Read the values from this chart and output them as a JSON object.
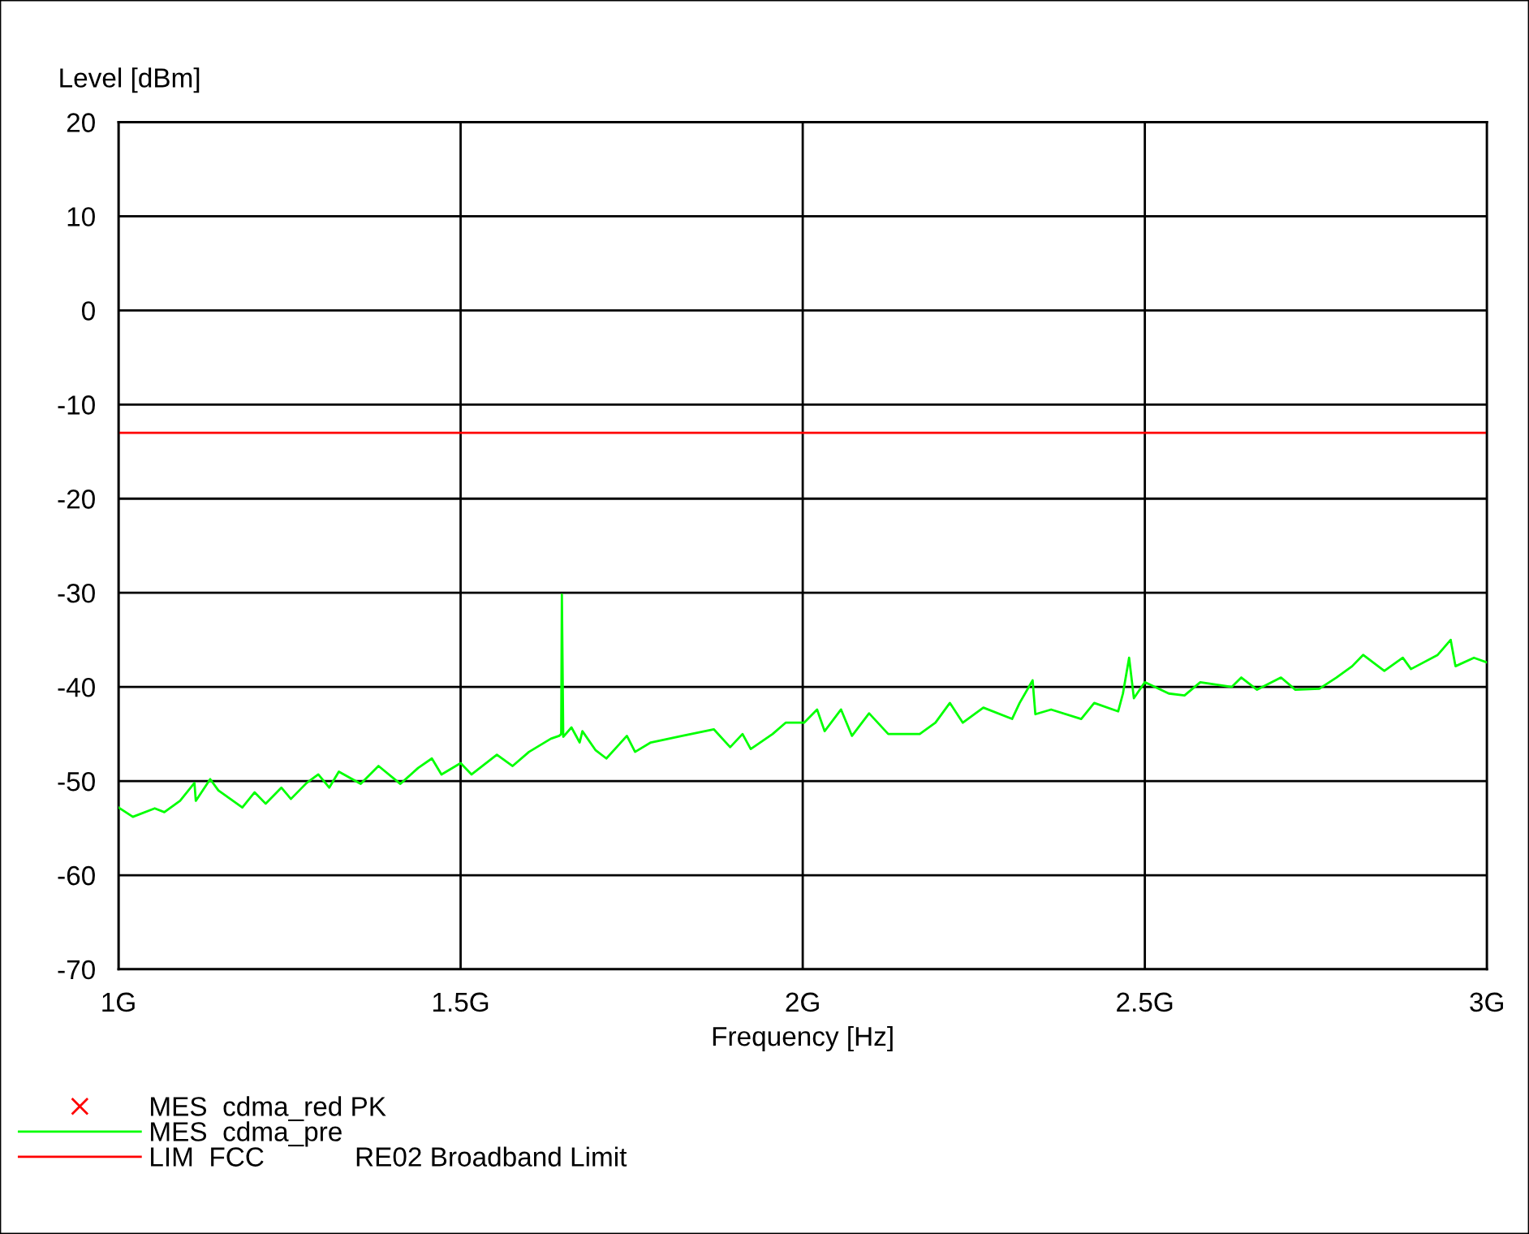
{
  "chart_data": {
    "type": "line",
    "ylabel": "Level [dBm]",
    "xlabel": "Frequency [Hz]",
    "xlim": [
      1.0,
      3.0
    ],
    "xticks": [
      {
        "value": 1.0,
        "label": "1G"
      },
      {
        "value": 1.5,
        "label": "1.5G"
      },
      {
        "value": 2.0,
        "label": "2G"
      },
      {
        "value": 2.5,
        "label": "2.5G"
      },
      {
        "value": 3.0,
        "label": "3G"
      }
    ],
    "ylim": [
      -70,
      20
    ],
    "yticks": [
      -70,
      -60,
      -50,
      -40,
      -30,
      -20,
      -10,
      0,
      10,
      20
    ],
    "grid": true,
    "legend": "bottom left",
    "series": [
      {
        "name": "MES  cdma_red PK",
        "type": "scatter",
        "marker": "cross",
        "color": "#ff0000"
      },
      {
        "name": "MES  cdma_pre",
        "color": "#00ff00",
        "x": [
          1.0,
          1.021,
          1.053,
          1.067,
          1.09,
          1.111,
          1.113,
          1.134,
          1.146,
          1.181,
          1.199,
          1.215,
          1.238,
          1.252,
          1.275,
          1.292,
          1.308,
          1.322,
          1.354,
          1.38,
          1.412,
          1.438,
          1.458,
          1.472,
          1.5,
          1.516,
          1.553,
          1.576,
          1.6,
          1.632,
          1.644,
          1.647,
          1.648,
          1.65,
          1.662,
          1.674,
          1.678,
          1.697,
          1.713,
          1.743,
          1.755,
          1.778,
          1.824,
          1.87,
          1.894,
          1.912,
          1.924,
          1.956,
          1.975,
          2.002,
          2.021,
          2.032,
          2.056,
          2.072,
          2.097,
          2.125,
          2.171,
          2.194,
          2.215,
          2.234,
          2.264,
          2.306,
          2.317,
          2.336,
          2.34,
          2.363,
          2.407,
          2.426,
          2.461,
          2.468,
          2.477,
          2.484,
          2.5,
          2.535,
          2.558,
          2.581,
          2.627,
          2.641,
          2.664,
          2.699,
          2.72,
          2.755,
          2.78,
          2.803,
          2.819,
          2.85,
          2.877,
          2.889,
          2.928,
          2.947,
          2.954,
          2.981,
          3.0
        ],
        "values": [
          -52.8,
          -53.8,
          -52.9,
          -53.3,
          -52.1,
          -50.2,
          -52.1,
          -49.8,
          -51.0,
          -52.8,
          -51.2,
          -52.4,
          -50.7,
          -51.9,
          -50.2,
          -49.3,
          -50.7,
          -49.0,
          -50.3,
          -48.4,
          -50.3,
          -48.6,
          -47.6,
          -49.3,
          -48.1,
          -49.3,
          -47.2,
          -48.4,
          -46.9,
          -45.5,
          -45.2,
          -45.0,
          -30.2,
          -45.3,
          -44.3,
          -45.9,
          -44.7,
          -46.7,
          -47.6,
          -45.2,
          -46.9,
          -45.9,
          -45.2,
          -44.5,
          -46.4,
          -45.0,
          -46.6,
          -45.0,
          -43.8,
          -43.8,
          -42.4,
          -44.7,
          -42.4,
          -45.2,
          -42.8,
          -45.0,
          -45.0,
          -43.8,
          -41.7,
          -43.8,
          -42.2,
          -43.4,
          -41.7,
          -39.3,
          -42.9,
          -42.4,
          -43.4,
          -41.7,
          -42.6,
          -40.7,
          -36.9,
          -41.2,
          -39.5,
          -40.7,
          -40.9,
          -39.5,
          -40.0,
          -39.0,
          -40.3,
          -39.0,
          -40.3,
          -40.2,
          -39.0,
          -37.8,
          -36.6,
          -38.3,
          -36.9,
          -38.1,
          -36.6,
          -35.0,
          -37.8,
          -36.9,
          -37.4
        ]
      }
    ],
    "ref_lines": [
      {
        "axis": "y",
        "value": -13,
        "label": "LIM  FCC            RE02 Broadband Limit",
        "color": "#ff0000"
      }
    ]
  }
}
